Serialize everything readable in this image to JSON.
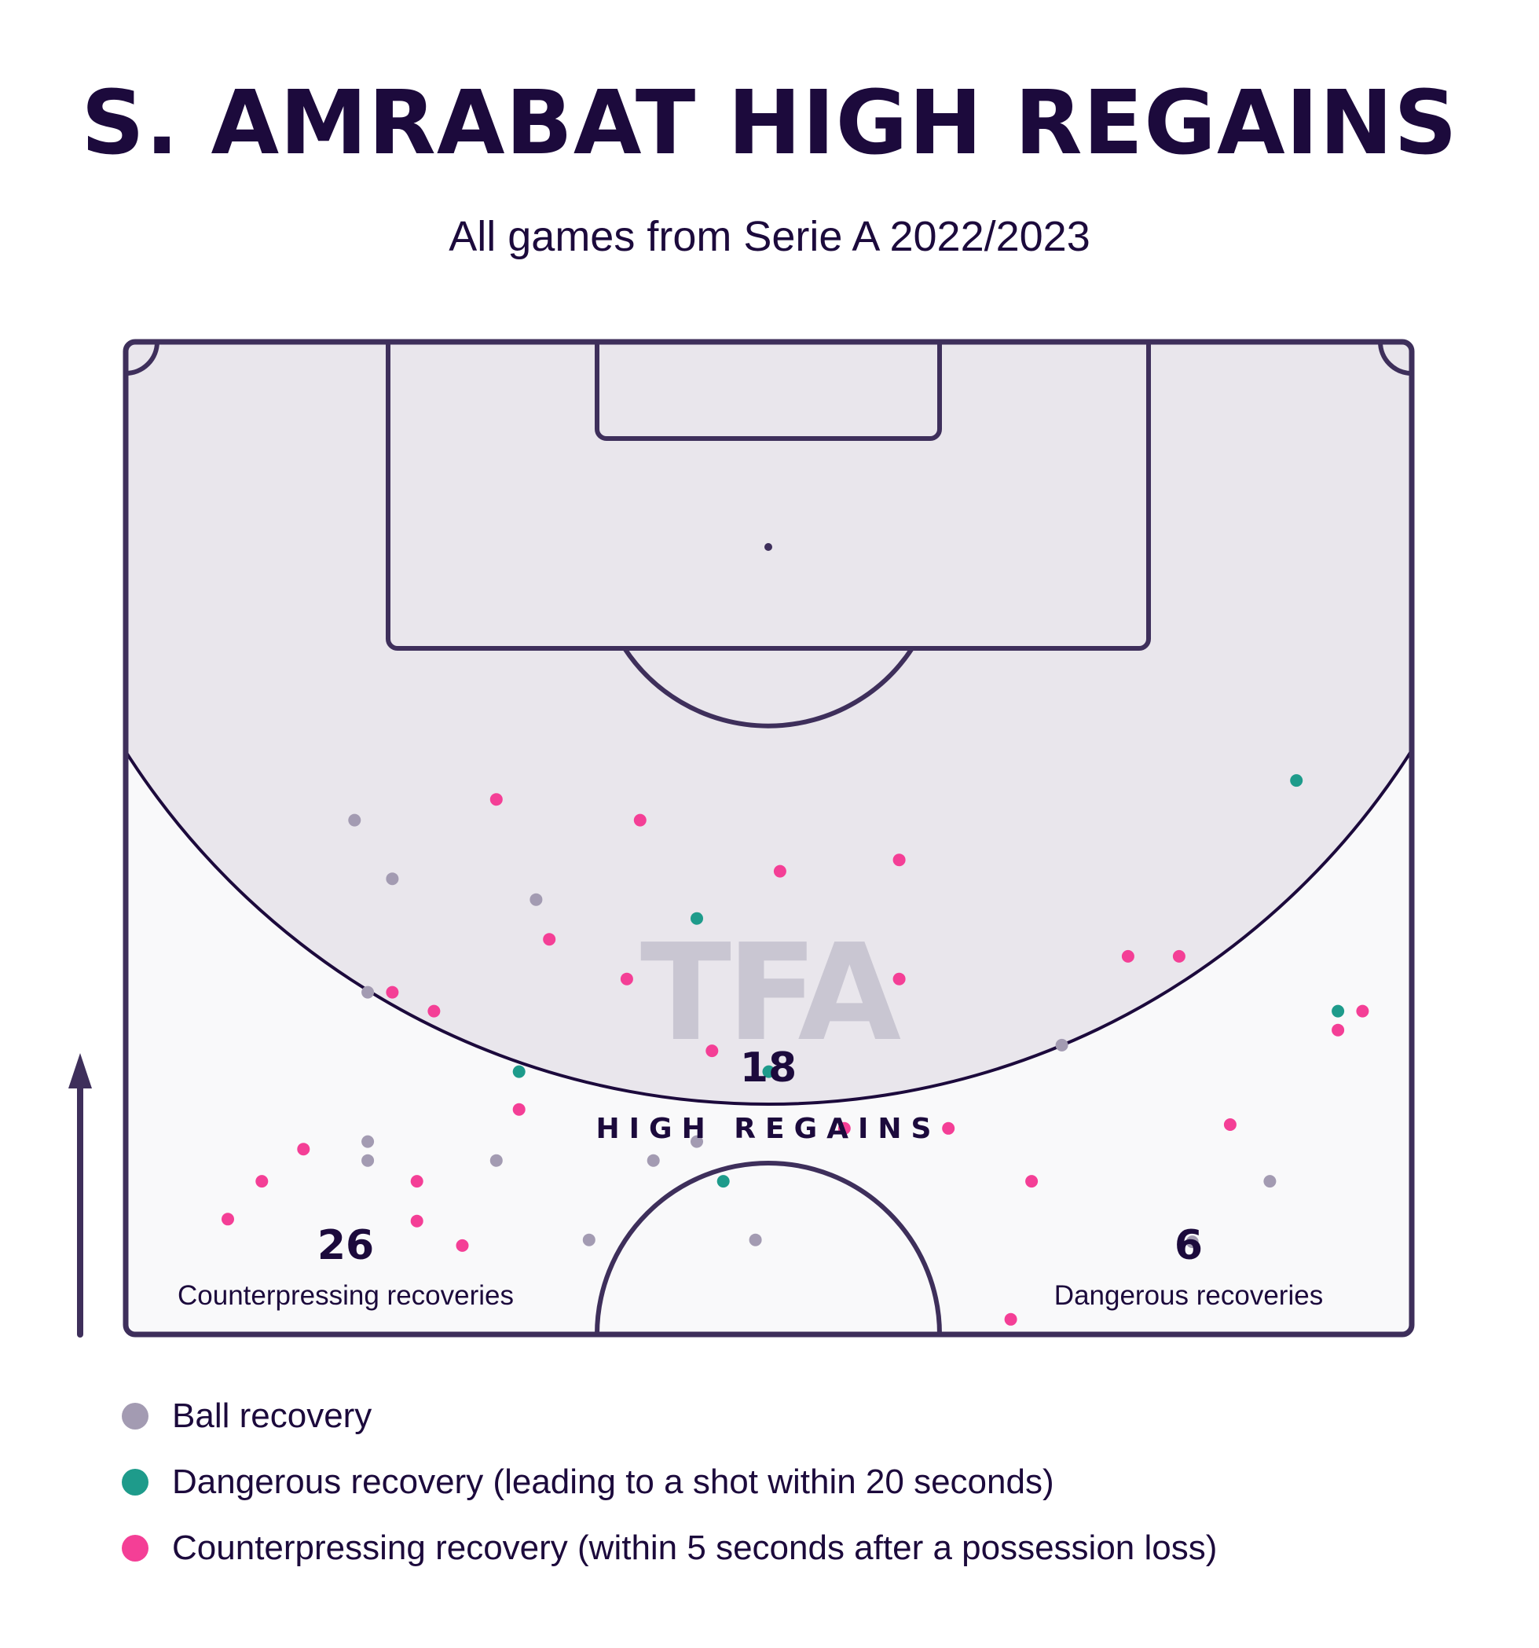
{
  "title": "S. AMRABAT HIGH REGAINS",
  "subtitle": "All games from Serie A 2022/2023",
  "watermark": "TFA",
  "center_stat": {
    "value": "18",
    "label": "HIGH REGAINS"
  },
  "left_stat": {
    "value": "26",
    "label": "Counterpressing recoveries"
  },
  "right_stat": {
    "value": "6",
    "label": "Dangerous recoveries"
  },
  "colors": {
    "ink": "#1c0a3c",
    "pitch_line": "#3e2f5b",
    "zone_fill": "#e9e6ec",
    "pitch_fill": "#f9f9fa",
    "ball": "#a39bb2",
    "dangerous": "#1e9b8b",
    "counterpressing": "#f43f96"
  },
  "legend": [
    {
      "key": "ball",
      "label": "Ball recovery",
      "color": "#a39bb2"
    },
    {
      "key": "dangerous",
      "label": "Dangerous recovery (leading to a shot within 20 seconds)",
      "color": "#1e9b8b"
    },
    {
      "key": "counterpressing",
      "label": "Counterpressing recovery (within 5 seconds after a possession loss)",
      "color": "#f43f96"
    }
  ],
  "chart_data": {
    "type": "scatter",
    "title": "S. AMRABAT HIGH REGAINS",
    "subtitle": "All games from Serie A 2022/2023",
    "pitch_half": "attacking",
    "attack_direction": "up",
    "xlim": [
      0,
      68
    ],
    "ylim": [
      105,
      52.5
    ],
    "series": [
      {
        "name": "Ball recovery",
        "points": [
          [
            12.1,
            79.7
          ],
          [
            14.1,
            76.6
          ],
          [
            21.7,
            75.5
          ],
          [
            12.8,
            70.6
          ],
          [
            12.8,
            62.7
          ],
          [
            12.8,
            61.7
          ],
          [
            19.6,
            61.7
          ],
          [
            27.9,
            61.7
          ],
          [
            30.2,
            62.7
          ],
          [
            24.5,
            57.5
          ],
          [
            33.3,
            57.5
          ],
          [
            49.5,
            67.8
          ],
          [
            60.5,
            60.6
          ],
          [
            56.4,
            57.4
          ]
        ]
      },
      {
        "name": "Dangerous recovery",
        "points": [
          [
            61.9,
            81.8
          ],
          [
            30.2,
            74.5
          ],
          [
            64.1,
            69.6
          ],
          [
            20.8,
            66.4
          ],
          [
            34.0,
            66.4
          ],
          [
            31.6,
            60.6
          ]
        ]
      },
      {
        "name": "Counterpressing recovery",
        "points": [
          [
            19.6,
            80.8
          ],
          [
            27.2,
            79.7
          ],
          [
            40.9,
            77.6
          ],
          [
            22.4,
            73.4
          ],
          [
            26.5,
            71.3
          ],
          [
            40.9,
            71.3
          ],
          [
            53.0,
            72.5
          ],
          [
            55.7,
            72.5
          ],
          [
            14.1,
            70.6
          ],
          [
            16.3,
            69.6
          ],
          [
            65.4,
            69.6
          ],
          [
            64.1,
            68.6
          ],
          [
            31.0,
            67.5
          ],
          [
            20.8,
            64.4
          ],
          [
            38.0,
            63.4
          ],
          [
            43.5,
            63.4
          ],
          [
            9.4,
            62.3
          ],
          [
            7.2,
            60.6
          ],
          [
            15.4,
            60.6
          ],
          [
            47.9,
            60.6
          ],
          [
            15.4,
            58.5
          ],
          [
            46.8,
            53.3
          ],
          [
            17.8,
            57.2
          ],
          [
            5.4,
            58.6
          ],
          [
            34.6,
            77.0
          ],
          [
            58.4,
            63.6
          ]
        ]
      }
    ],
    "totals": {
      "high_regains": 18,
      "counterpressing_recoveries": 26,
      "dangerous_recoveries": 6
    }
  }
}
